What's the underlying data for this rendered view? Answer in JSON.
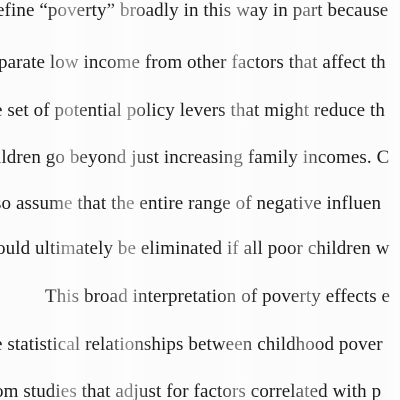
{
  "document": {
    "lines": [
      "efine “poverty” broadly in this way in part because",
      "parate low income from other factors that affect th",
      "e set of potential policy levers that might reduce th",
      "ildren go beyond just increasing family incomes. C",
      "so assume that the entire range of negative influen",
      "ould ultimately be eliminated if all poor children w",
      "This broad interpretation of poverty effects e",
      "e statistical relationships between childhood pover",
      "om studies that adjust for factors correlated with p"
    ]
  }
}
